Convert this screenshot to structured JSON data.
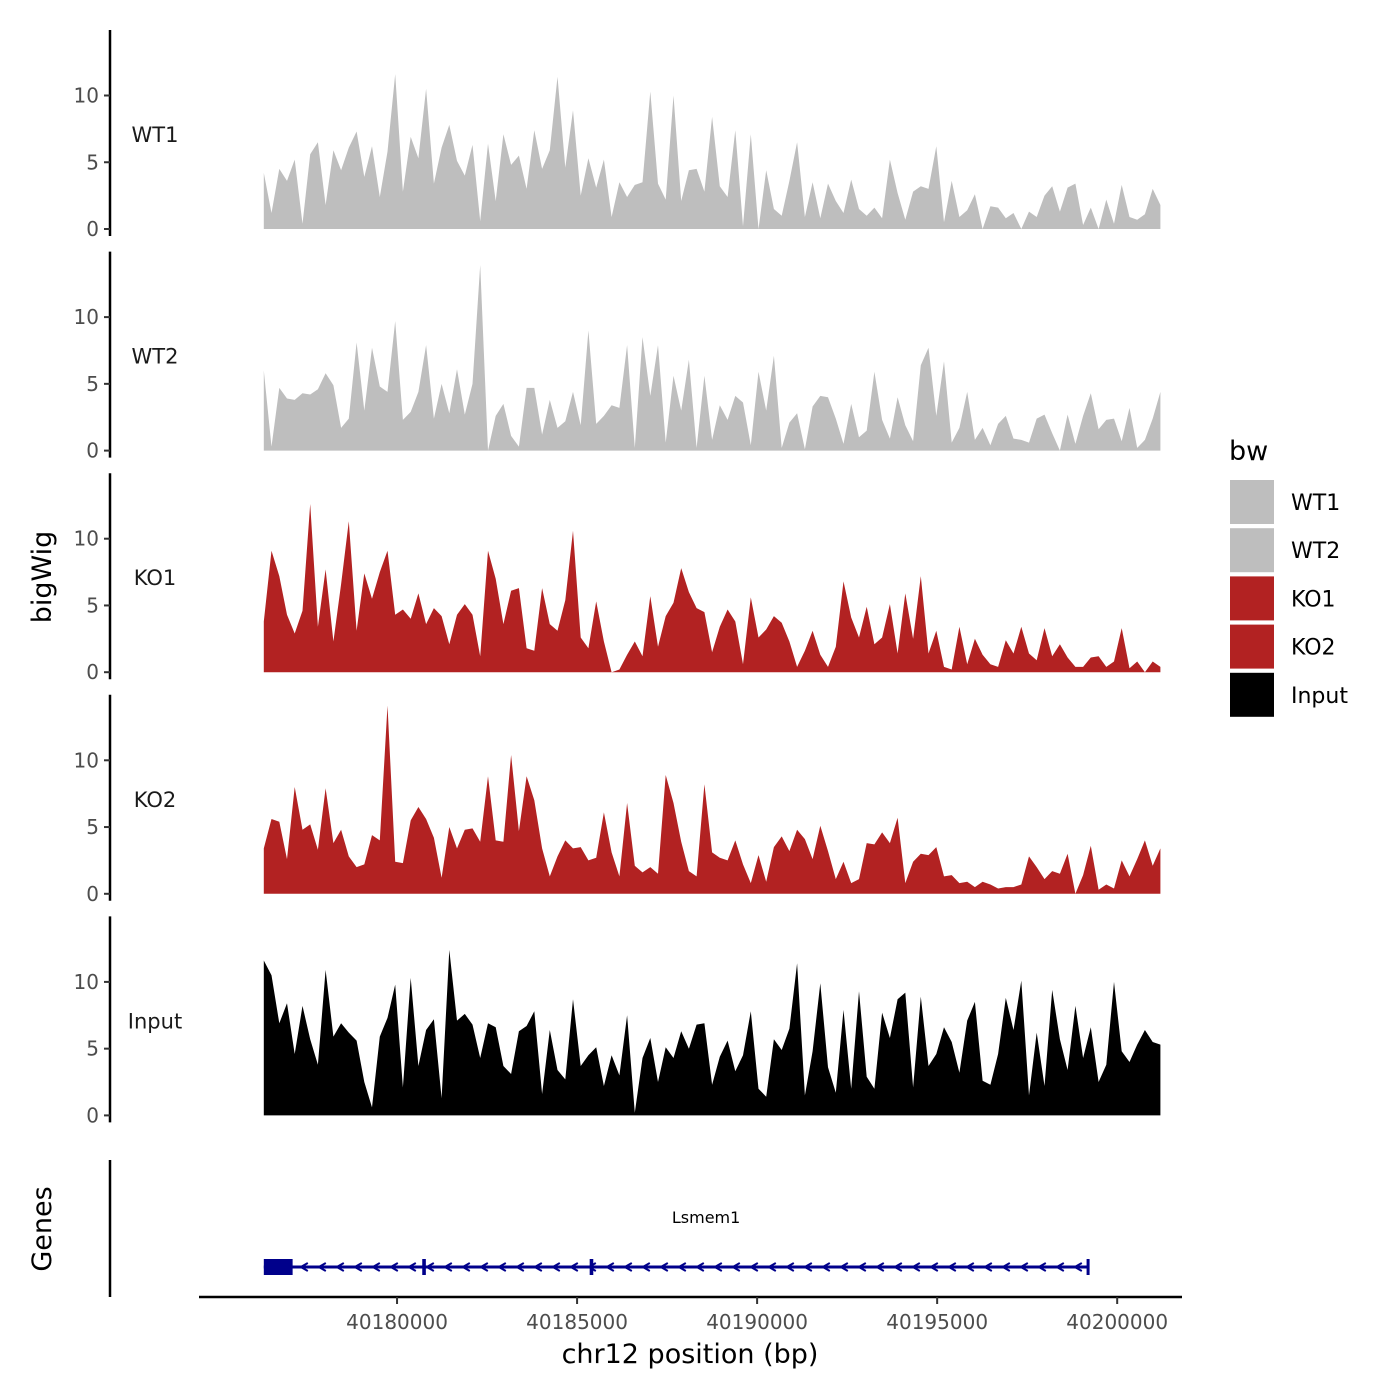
{
  "chart_data": {
    "type": "area",
    "chromosome": "chr12",
    "y_axis_title": "bigWig",
    "genes_axis_title": "Genes",
    "x_axis_title": "chr12 position (bp)",
    "xlim": [
      40174500,
      40201800
    ],
    "ylim": [
      0,
      14.5
    ],
    "x_ticks": [
      40180000,
      40185000,
      40190000,
      40195000,
      40200000
    ],
    "x_tick_labels": [
      "40180000",
      "40185000",
      "40190000",
      "40195000",
      "40200000"
    ],
    "y_ticks": [
      0,
      5,
      10
    ],
    "y_tick_labels": [
      "0",
      "5",
      "10"
    ],
    "legend": {
      "title": "bw",
      "entries": [
        {
          "label": "WT1",
          "color": "#bebebe"
        },
        {
          "label": "WT2",
          "color": "#bebebe"
        },
        {
          "label": "KO1",
          "color": "#b22222"
        },
        {
          "label": "KO2",
          "color": "#b22222"
        },
        {
          "label": "Input",
          "color": "#000000"
        }
      ]
    },
    "signal_range": [
      40176300,
      40201200
    ],
    "series": [
      {
        "name": "WT1",
        "color": "#bebebe",
        "max_value": 11.6,
        "values": [
          4.2,
          1.2,
          4.5,
          3.6,
          5.2,
          0.4,
          5.6,
          6.5,
          1.8,
          5.9,
          4.4,
          6.1,
          7.3,
          3.9,
          6.2,
          2.4,
          5.8,
          11.6,
          2.8,
          6.9,
          5.3,
          10.5,
          3.4,
          6.1,
          7.8,
          5.1,
          4.0,
          6.3,
          0.6,
          6.4,
          2.1,
          7.1,
          4.8,
          5.5,
          3.0,
          7.4,
          4.5,
          5.9,
          11.4,
          4.6,
          8.9,
          2.5,
          5.3,
          3.1,
          5.2,
          0.9,
          3.5,
          2.4,
          3.3,
          3.5,
          10.3,
          3.4,
          2.2,
          10.0,
          2.1,
          4.4,
          4.5,
          2.8,
          8.4,
          3.2,
          2.4,
          7.4,
          0.2,
          7.1,
          0.0,
          4.4,
          1.5,
          1.0,
          3.6,
          6.5,
          0.9,
          3.5,
          0.8,
          3.4,
          2.1,
          1.2,
          3.7,
          1.5,
          1.0,
          1.6,
          0.8,
          5.2,
          2.7,
          0.7,
          2.8,
          3.2,
          3.0,
          6.2,
          0.5,
          3.6,
          0.9,
          1.4,
          2.6,
          0.0,
          1.7,
          1.6,
          0.8,
          1.2,
          0.0,
          1.3,
          0.9,
          2.5,
          3.2,
          1.3,
          3.1,
          3.4,
          0.3,
          1.6,
          0.0,
          2.2,
          0.4,
          3.3,
          0.9,
          0.7,
          1.1,
          3.0,
          1.8
        ]
      },
      {
        "name": "WT2",
        "color": "#bebebe",
        "max_value": 13.9,
        "values": [
          6.0,
          0.3,
          4.7,
          3.9,
          3.8,
          4.3,
          4.2,
          4.6,
          5.8,
          4.9,
          1.7,
          2.4,
          8.1,
          3.0,
          7.7,
          4.8,
          4.4,
          9.7,
          2.3,
          2.9,
          4.4,
          7.9,
          2.4,
          5.0,
          2.8,
          6.1,
          2.7,
          5.0,
          13.9,
          0.0,
          2.6,
          3.5,
          1.1,
          0.3,
          4.7,
          4.7,
          1.2,
          3.8,
          1.7,
          2.2,
          4.4,
          1.9,
          9.0,
          2.0,
          2.6,
          3.4,
          3.2,
          7.9,
          0.2,
          8.5,
          4.1,
          7.9,
          0.6,
          5.6,
          3.0,
          6.8,
          0.2,
          5.6,
          0.8,
          3.4,
          2.3,
          4.1,
          3.6,
          0.4,
          5.9,
          3.0,
          7.1,
          0.2,
          2.1,
          2.8,
          0.1,
          3.3,
          4.1,
          4.0,
          2.4,
          0.5,
          3.5,
          1.0,
          1.5,
          5.9,
          2.3,
          0.9,
          4.0,
          1.9,
          0.7,
          6.4,
          7.7,
          2.6,
          6.7,
          0.6,
          1.7,
          4.4,
          0.8,
          1.7,
          0.4,
          2.0,
          2.6,
          0.9,
          0.8,
          0.6,
          2.4,
          2.7,
          1.3,
          0.0,
          2.7,
          0.5,
          2.6,
          4.3,
          1.6,
          2.3,
          2.4,
          0.7,
          3.2,
          0.2,
          0.8,
          2.4,
          4.4
        ]
      },
      {
        "name": "KO1",
        "color": "#b22222",
        "max_value": 12.6,
        "values": [
          3.8,
          9.1,
          7.2,
          4.3,
          2.9,
          4.6,
          12.6,
          3.4,
          7.7,
          2.3,
          6.6,
          11.3,
          3.1,
          7.4,
          5.5,
          7.5,
          9.1,
          4.3,
          4.7,
          4.0,
          5.9,
          3.6,
          4.8,
          4.2,
          2.1,
          4.3,
          5.1,
          4.3,
          1.2,
          9.1,
          7.0,
          3.6,
          6.1,
          6.3,
          1.8,
          1.6,
          6.3,
          3.6,
          3.1,
          5.4,
          10.6,
          2.6,
          1.8,
          5.3,
          2.3,
          0.0,
          0.2,
          1.3,
          2.3,
          1.2,
          5.7,
          1.9,
          4.2,
          5.2,
          7.8,
          6.0,
          4.8,
          4.5,
          1.5,
          3.4,
          4.7,
          3.8,
          0.6,
          5.6,
          2.6,
          3.2,
          4.2,
          3.7,
          2.3,
          0.4,
          1.6,
          3.1,
          1.3,
          0.4,
          1.9,
          6.8,
          4.1,
          2.6,
          4.9,
          2.1,
          2.6,
          5.1,
          1.4,
          5.9,
          2.5,
          7.2,
          1.4,
          3.1,
          0.4,
          0.2,
          3.4,
          0.6,
          2.5,
          1.3,
          0.6,
          0.4,
          2.4,
          1.4,
          3.4,
          1.4,
          0.9,
          3.3,
          1.2,
          2.1,
          1.1,
          0.4,
          0.4,
          1.1,
          1.2,
          0.4,
          0.8,
          3.3,
          0.3,
          0.8,
          0.0,
          0.8,
          0.4
        ]
      },
      {
        "name": "KO2",
        "color": "#b22222",
        "max_value": 14.1,
        "values": [
          3.4,
          5.6,
          5.4,
          2.6,
          8.0,
          4.8,
          5.2,
          3.3,
          7.9,
          3.8,
          4.8,
          2.8,
          2.0,
          2.2,
          4.4,
          4.0,
          14.1,
          2.4,
          2.3,
          5.5,
          6.5,
          5.6,
          4.2,
          1.2,
          5.0,
          3.4,
          4.8,
          4.9,
          3.9,
          8.8,
          4.0,
          3.9,
          10.4,
          4.7,
          8.8,
          7.0,
          3.4,
          1.3,
          2.8,
          4.0,
          3.4,
          3.5,
          2.5,
          2.7,
          6.1,
          3.1,
          1.3,
          6.8,
          2.1,
          1.6,
          2.0,
          1.5,
          8.9,
          6.8,
          3.9,
          1.7,
          1.3,
          8.2,
          3.1,
          2.7,
          2.5,
          4.0,
          2.2,
          0.8,
          2.9,
          0.9,
          3.5,
          4.3,
          3.2,
          4.8,
          4.1,
          2.6,
          5.1,
          3.2,
          1.1,
          2.4,
          0.8,
          1.1,
          3.8,
          3.7,
          4.6,
          3.8,
          5.7,
          0.8,
          2.4,
          3.0,
          2.9,
          3.5,
          1.3,
          1.4,
          0.8,
          0.9,
          0.5,
          0.9,
          0.7,
          0.4,
          0.5,
          0.5,
          0.7,
          2.8,
          2.0,
          1.1,
          1.7,
          1.5,
          3.0,
          0.0,
          1.4,
          3.6,
          0.3,
          0.7,
          0.4,
          2.5,
          1.3,
          2.6,
          4.0,
          2.1,
          3.4
        ]
      },
      {
        "name": "Input",
        "color": "#000000",
        "max_value": 12.4,
        "values": [
          11.6,
          10.5,
          6.9,
          8.4,
          4.6,
          8.2,
          5.7,
          3.8,
          10.9,
          5.9,
          6.9,
          6.2,
          5.6,
          2.5,
          0.6,
          5.9,
          7.3,
          9.8,
          2.1,
          10.3,
          3.7,
          6.4,
          7.2,
          1.3,
          12.4,
          7.1,
          7.6,
          6.8,
          4.3,
          6.9,
          6.6,
          3.7,
          3.1,
          6.3,
          6.7,
          7.8,
          1.6,
          6.4,
          3.4,
          2.7,
          8.7,
          3.7,
          4.5,
          5.1,
          2.2,
          4.5,
          3.0,
          7.5,
          0.2,
          4.3,
          5.8,
          2.5,
          5.1,
          4.3,
          6.3,
          5.0,
          6.8,
          6.9,
          2.3,
          4.4,
          5.6,
          3.3,
          4.5,
          7.8,
          2.0,
          1.4,
          5.7,
          4.9,
          6.5,
          11.4,
          1.5,
          4.8,
          9.9,
          3.6,
          1.7,
          7.9,
          2.0,
          9.3,
          2.9,
          2.0,
          7.7,
          5.8,
          8.7,
          9.2,
          2.1,
          8.9,
          3.7,
          4.6,
          6.6,
          5.5,
          3.2,
          7.1,
          8.5,
          2.6,
          2.3,
          4.6,
          8.8,
          6.4,
          10.1,
          1.5,
          6.2,
          2.2,
          9.4,
          5.7,
          3.4,
          8.2,
          4.3,
          6.6,
          2.5,
          3.8,
          10.0,
          4.8,
          4.0,
          5.3,
          6.4,
          5.5,
          5.3
        ]
      }
    ],
    "gene": {
      "name": "Lsmem1",
      "start": 40176300,
      "end": 40199200,
      "strand": "-",
      "color": "#00008b",
      "exons": [
        [
          40176300,
          40177100
        ],
        [
          40180700,
          40180800
        ],
        [
          40185350,
          40185450
        ],
        [
          40199150,
          40199200
        ]
      ]
    }
  }
}
